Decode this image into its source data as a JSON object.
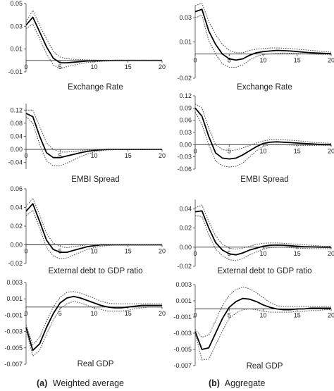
{
  "captions": [
    {
      "letter": "(a)",
      "text": "Weighted average"
    },
    {
      "letter": "(b)",
      "text": "Aggregate"
    }
  ],
  "chart_data": [
    {
      "type": "line",
      "column": "Weighted average",
      "title": "Exchange Rate",
      "xlim": [
        0,
        20
      ],
      "ylim": [
        -0.01,
        0.05
      ],
      "xticks": [
        0,
        5,
        10,
        15,
        20
      ],
      "yticks": [
        -0.01,
        0.01,
        0.03,
        0.05
      ],
      "ytick_labels": [
        "-0.01",
        "0.01",
        "0.03",
        "0.05"
      ],
      "x": [
        0,
        1,
        2,
        3,
        4,
        5,
        6,
        7,
        8,
        9,
        10,
        11,
        12,
        13,
        14,
        15,
        16,
        17,
        18,
        19,
        20
      ],
      "series": [
        {
          "style": "solid",
          "values": [
            0.031,
            0.038,
            0.025,
            0.012,
            0.002,
            -0.002,
            -0.002,
            -0.0015,
            -0.001,
            -0.0005,
            -0.0003,
            -0.0002,
            -0.0001,
            0,
            0,
            0,
            0,
            0,
            0,
            0,
            0
          ]
        },
        {
          "style": "dotted",
          "values": [
            0.034,
            0.044,
            0.031,
            0.019,
            0.008,
            0.003,
            0.0015,
            0.001,
            0.0008,
            0.0006,
            0.0004,
            0.0003,
            0.0002,
            0.0002,
            0.0001,
            0.0001,
            0.0001,
            0.0001,
            0.0001,
            0.0001,
            0.0001
          ]
        },
        {
          "style": "dotted",
          "values": [
            0.028,
            0.032,
            0.019,
            0.006,
            -0.004,
            -0.007,
            -0.0055,
            -0.004,
            -0.0028,
            -0.0018,
            -0.0012,
            -0.0008,
            -0.0005,
            -0.0003,
            -0.0002,
            -0.0001,
            -0.0001,
            -0.0001,
            -0.0001,
            -0.0001,
            -0.0001
          ]
        }
      ]
    },
    {
      "type": "line",
      "column": "Aggregate",
      "title": "Exchange Rate",
      "xlim": [
        0,
        20
      ],
      "ylim": [
        -0.02,
        0.04
      ],
      "xticks": [
        0,
        5,
        10,
        15,
        20
      ],
      "yticks": [
        -0.02,
        0.01,
        0.03
      ],
      "ytick_labels": [
        "-0.02",
        "0.01",
        "0.03"
      ],
      "x": [
        0,
        1,
        2,
        3,
        4,
        5,
        6,
        7,
        8,
        9,
        10,
        11,
        12,
        13,
        14,
        15,
        16,
        17,
        18,
        19,
        20
      ],
      "series": [
        {
          "style": "solid",
          "values": [
            0.035,
            0.037,
            0.019,
            0.008,
            0,
            -0.004,
            -0.005,
            -0.004,
            -0.001,
            0.001,
            0.002,
            0.0025,
            0.003,
            0.0028,
            0.0025,
            0.002,
            0.0015,
            0.001,
            0.0008,
            0.0005,
            0.0003
          ]
        },
        {
          "style": "dotted",
          "values": [
            0.04,
            0.042,
            0.027,
            0.016,
            0.008,
            0.003,
            0.001,
            0.001,
            0.003,
            0.004,
            0.0045,
            0.005,
            0.005,
            0.0048,
            0.0045,
            0.004,
            0.0035,
            0.003,
            0.0025,
            0.002,
            0.0015
          ]
        },
        {
          "style": "dotted",
          "values": [
            0.03,
            0.032,
            0.011,
            0,
            -0.008,
            -0.011,
            -0.011,
            -0.009,
            -0.005,
            -0.002,
            -0.0005,
            0,
            0.0005,
            0.0008,
            0.0006,
            0.0004,
            0.0002,
            0,
            -0.0002,
            -0.0003,
            -0.0004
          ]
        }
      ]
    },
    {
      "type": "line",
      "column": "Weighted average",
      "title": "EMBI Spread",
      "xlim": [
        0,
        20
      ],
      "ylim": [
        -0.06,
        0.14
      ],
      "xticks": [
        0,
        5,
        10,
        15,
        20
      ],
      "yticks": [
        -0.04,
        0.0,
        0.04,
        0.08,
        0.12
      ],
      "ytick_labels": [
        "-0.04",
        "0.00",
        "0.04",
        "0.08",
        "0.12"
      ],
      "x": [
        0,
        1,
        2,
        3,
        4,
        5,
        6,
        7,
        8,
        9,
        10,
        11,
        12,
        13,
        14,
        15,
        16,
        17,
        18,
        19,
        20
      ],
      "series": [
        {
          "style": "solid",
          "values": [
            0.11,
            0.1,
            0.04,
            -0.01,
            -0.025,
            -0.025,
            -0.02,
            -0.015,
            -0.01,
            -0.006,
            -0.003,
            -0.001,
            0,
            0,
            0,
            0,
            0,
            0,
            0,
            0,
            0
          ]
        },
        {
          "style": "dotted",
          "values": [
            0.12,
            0.12,
            0.07,
            0.02,
            0,
            -0.008,
            -0.008,
            -0.006,
            -0.004,
            -0.002,
            -0.001,
            0,
            0.0005,
            0.0005,
            0.0005,
            0.0005,
            0.0005,
            0.0005,
            0.0005,
            0.0005,
            0.0005
          ]
        },
        {
          "style": "dotted",
          "values": [
            0.1,
            0.08,
            0.015,
            -0.035,
            -0.05,
            -0.05,
            -0.042,
            -0.032,
            -0.022,
            -0.014,
            -0.008,
            -0.004,
            -0.002,
            -0.001,
            -0.0005,
            -0.0005,
            -0.0005,
            -0.0005,
            -0.0005,
            -0.0005,
            -0.0005
          ]
        }
      ]
    },
    {
      "type": "line",
      "column": "Aggregate",
      "title": "EMBI Spread",
      "xlim": [
        0,
        20
      ],
      "ylim": [
        -0.06,
        0.12
      ],
      "xticks": [
        0,
        5,
        10,
        15,
        20
      ],
      "yticks": [
        -0.06,
        -0.03,
        0.0,
        0.03,
        0.06,
        0.09,
        0.12
      ],
      "ytick_labels": [
        "-0.06",
        "-0.03",
        "0.00",
        "0.03",
        "0.06",
        "0.09",
        "0.12"
      ],
      "x": [
        0,
        1,
        2,
        3,
        4,
        5,
        6,
        7,
        8,
        9,
        10,
        11,
        12,
        13,
        14,
        15,
        16,
        17,
        18,
        19,
        20
      ],
      "series": [
        {
          "style": "solid",
          "values": [
            0.09,
            0.07,
            0.02,
            -0.02,
            -0.033,
            -0.035,
            -0.033,
            -0.025,
            -0.015,
            -0.005,
            0.003,
            0.006,
            0.007,
            0.006,
            0.005,
            0.004,
            0.003,
            0.002,
            0.001,
            0,
            0
          ]
        },
        {
          "style": "dotted",
          "values": [
            0.1,
            0.09,
            0.04,
            0,
            -0.012,
            -0.015,
            -0.013,
            -0.008,
            -0.002,
            0.004,
            0.009,
            0.012,
            0.013,
            0.012,
            0.011,
            0.01,
            0.008,
            0.006,
            0.005,
            0.004,
            0.003
          ]
        },
        {
          "style": "dotted",
          "values": [
            0.08,
            0.05,
            0,
            -0.04,
            -0.052,
            -0.055,
            -0.053,
            -0.045,
            -0.03,
            -0.015,
            -0.004,
            0,
            0.001,
            0,
            -0.001,
            -0.002,
            -0.002,
            -0.002,
            -0.002,
            -0.002,
            -0.002
          ]
        }
      ]
    },
    {
      "type": "line",
      "column": "Weighted average",
      "title": "External debt to GDP ratio",
      "xlim": [
        0,
        20
      ],
      "ylim": [
        -0.02,
        0.06
      ],
      "xticks": [
        0,
        5,
        10,
        15,
        20
      ],
      "yticks": [
        -0.02,
        0.0,
        0.02,
        0.04,
        0.06
      ],
      "ytick_labels": [
        "-0.02",
        "0.00",
        "0.02",
        "0.04",
        "0.06"
      ],
      "x": [
        0,
        1,
        2,
        3,
        4,
        5,
        6,
        7,
        8,
        9,
        10,
        11,
        12,
        13,
        14,
        15,
        16,
        17,
        18,
        19,
        20
      ],
      "series": [
        {
          "style": "solid",
          "values": [
            0.036,
            0.044,
            0.025,
            0.005,
            -0.005,
            -0.008,
            -0.008,
            -0.006,
            -0.004,
            -0.002,
            -0.001,
            0,
            0,
            0,
            0,
            0,
            0,
            0,
            0,
            0,
            0
          ]
        },
        {
          "style": "dotted",
          "values": [
            0.041,
            0.05,
            0.032,
            0.012,
            0.002,
            -0.002,
            -0.003,
            -0.002,
            -0.001,
            0,
            0,
            0.0003,
            0.0003,
            0.0003,
            0.0003,
            0.0003,
            0.0003,
            0.0003,
            0.0003,
            0.0003,
            0.0003
          ]
        },
        {
          "style": "dotted",
          "values": [
            0.031,
            0.037,
            0.018,
            -0.003,
            -0.012,
            -0.015,
            -0.014,
            -0.011,
            -0.008,
            -0.005,
            -0.003,
            -0.0015,
            -0.0008,
            -0.0004,
            -0.0003,
            -0.0003,
            -0.0003,
            -0.0003,
            -0.0003,
            -0.0003,
            -0.0003
          ]
        }
      ]
    },
    {
      "type": "line",
      "column": "Aggregate",
      "title": "External debt to GDP ratio",
      "xlim": [
        0,
        20
      ],
      "ylim": [
        -0.02,
        0.05
      ],
      "xticks": [
        0,
        5,
        10,
        15,
        20
      ],
      "yticks": [
        -0.02,
        0.0,
        0.02,
        0.04
      ],
      "ytick_labels": [
        "-0.02",
        "0.00",
        "0.02",
        "0.04"
      ],
      "x": [
        0,
        1,
        2,
        3,
        4,
        5,
        6,
        7,
        8,
        9,
        10,
        11,
        12,
        13,
        14,
        15,
        16,
        17,
        18,
        19,
        20
      ],
      "series": [
        {
          "style": "solid",
          "values": [
            0.037,
            0.038,
            0.02,
            0.005,
            -0.003,
            -0.007,
            -0.008,
            -0.006,
            -0.003,
            -0.001,
            0.001,
            0.002,
            0.0022,
            0.002,
            0.0015,
            0.001,
            0.0005,
            0.0003,
            0.0001,
            0,
            0
          ]
        },
        {
          "style": "dotted",
          "values": [
            0.041,
            0.044,
            0.027,
            0.012,
            0.003,
            -0.001,
            -0.002,
            -0.001,
            0.001,
            0.003,
            0.004,
            0.0045,
            0.0045,
            0.004,
            0.0035,
            0.003,
            0.0025,
            0.002,
            0.0015,
            0.001,
            0.001
          ]
        },
        {
          "style": "dotted",
          "values": [
            0.033,
            0.032,
            0.013,
            -0.002,
            -0.009,
            -0.013,
            -0.014,
            -0.012,
            -0.008,
            -0.005,
            -0.002,
            -0.0005,
            0,
            0,
            -0.0005,
            -0.001,
            -0.0012,
            -0.0014,
            -0.0015,
            -0.0015,
            -0.0015
          ]
        }
      ]
    },
    {
      "type": "line",
      "column": "Weighted average",
      "title": "Real GDP",
      "xlim": [
        0,
        20
      ],
      "ylim": [
        -0.007,
        0.003
      ],
      "xticks": [
        0,
        5,
        10,
        15,
        20
      ],
      "yticks": [
        -0.007,
        -0.005,
        -0.003,
        -0.001,
        0.001,
        0.003
      ],
      "ytick_labels": [
        "-0.007",
        "-0.005",
        "-0.003",
        "-0.001",
        "0.001",
        "0.003"
      ],
      "x": [
        0,
        1,
        2,
        3,
        4,
        5,
        6,
        7,
        8,
        9,
        10,
        11,
        12,
        13,
        14,
        15,
        16,
        17,
        18,
        19,
        20
      ],
      "series": [
        {
          "style": "solid",
          "values": [
            -0.0025,
            -0.0053,
            -0.0045,
            -0.0025,
            -0.0008,
            0.0005,
            0.0011,
            0.0013,
            0.0011,
            0.0008,
            0.0005,
            0.0002,
            0,
            -0.0001,
            -0.0001,
            0,
            0.0001,
            0.0002,
            0.0002,
            0.0002,
            0.0002
          ]
        },
        {
          "style": "dotted",
          "values": [
            -0.0022,
            -0.0046,
            -0.0037,
            -0.0017,
            0,
            0.0012,
            0.0018,
            0.0019,
            0.0017,
            0.0014,
            0.0011,
            0.0007,
            0.0005,
            0.0004,
            0.0004,
            0.0004,
            0.0004,
            0.0004,
            0.0004,
            0.0004,
            0.0004
          ]
        },
        {
          "style": "dotted",
          "values": [
            -0.0028,
            -0.006,
            -0.0053,
            -0.0033,
            -0.0016,
            -0.0002,
            0.0004,
            0.0007,
            0.0005,
            0.0002,
            -0.0001,
            -0.0003,
            -0.0005,
            -0.0005,
            -0.0005,
            -0.0004,
            -0.0002,
            -0.0001,
            0,
            0,
            0
          ]
        }
      ]
    },
    {
      "type": "line",
      "column": "Aggregate",
      "title": "Real GDP",
      "xlim": [
        0,
        20
      ],
      "ylim": [
        -0.007,
        0.003
      ],
      "xticks": [
        0,
        5,
        10,
        15,
        20
      ],
      "yticks": [
        -0.007,
        -0.005,
        -0.003,
        -0.001,
        0.001,
        0.003
      ],
      "ytick_labels": [
        "-0.007",
        "-0.005",
        "-0.003",
        "-0.001",
        "0.001",
        "0.003"
      ],
      "x": [
        0,
        1,
        2,
        3,
        4,
        5,
        6,
        7,
        8,
        9,
        10,
        11,
        12,
        13,
        14,
        15,
        16,
        17,
        18,
        19,
        20
      ],
      "series": [
        {
          "style": "solid",
          "values": [
            -0.0028,
            -0.005,
            -0.0048,
            -0.003,
            -0.0012,
            0.0002,
            0.0009,
            0.0013,
            0.0012,
            0.0009,
            0.0005,
            0.0002,
            0,
            -0.0001,
            -0.0001,
            0,
            0,
            0.0001,
            0.0001,
            0.0001,
            0.0001
          ]
        },
        {
          "style": "dotted",
          "values": [
            -0.0025,
            -0.0035,
            -0.0032,
            -0.0015,
            0.0004,
            0.0017,
            0.0024,
            0.0027,
            0.0025,
            0.002,
            0.0014,
            0.0008,
            0.0004,
            0.0003,
            0.0003,
            0.0003,
            0.0003,
            0.0003,
            0.0003,
            0.0003,
            0.0003
          ]
        },
        {
          "style": "dotted",
          "values": [
            -0.003,
            -0.0063,
            -0.0062,
            -0.0045,
            -0.0027,
            -0.0012,
            -0.0005,
            -0.0001,
            0,
            -0.0001,
            -0.0003,
            -0.0004,
            -0.0004,
            -0.0004,
            -0.0004,
            -0.0003,
            -0.0003,
            -0.0002,
            -0.0002,
            -0.0001,
            -0.0001
          ]
        }
      ]
    }
  ]
}
